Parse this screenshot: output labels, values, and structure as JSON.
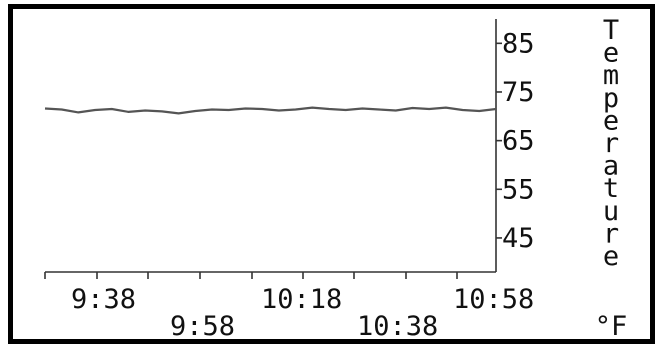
{
  "chart_data": {
    "type": "line",
    "ylabel_letters": [
      "T",
      "e",
      "m",
      "p",
      "e",
      "r",
      "a",
      "t",
      "u",
      "r",
      "e"
    ],
    "ylabel_unit": "°F",
    "y_ticks": [
      85,
      75,
      65,
      55,
      45
    ],
    "ylim": [
      38,
      90
    ],
    "x_tick_labels_upper": [
      "9:38",
      "10:18",
      "10:58"
    ],
    "x_tick_labels_lower": [
      "9:58",
      "10:38"
    ],
    "grid": false,
    "series": [
      {
        "x": [
          "9:38",
          "9:41",
          "9:44",
          "9:47",
          "9:50",
          "9:53",
          "9:56",
          "9:59",
          "10:02",
          "10:05",
          "10:08",
          "10:11",
          "10:14",
          "10:17",
          "10:20",
          "10:23",
          "10:26",
          "10:29",
          "10:32",
          "10:35",
          "10:38",
          "10:41",
          "10:44",
          "10:47",
          "10:50",
          "10:53",
          "10:56",
          "10:58"
        ],
        "values": [
          71.6,
          71.4,
          70.8,
          71.3,
          71.5,
          70.9,
          71.2,
          71.0,
          70.6,
          71.1,
          71.4,
          71.3,
          71.6,
          71.5,
          71.2,
          71.4,
          71.8,
          71.5,
          71.3,
          71.6,
          71.4,
          71.2,
          71.7,
          71.5,
          71.8,
          71.3,
          71.1,
          71.5
        ]
      }
    ],
    "colors": {
      "line": "#555555",
      "axis": "#333333",
      "text": "#111111",
      "frame": "#000000"
    }
  }
}
